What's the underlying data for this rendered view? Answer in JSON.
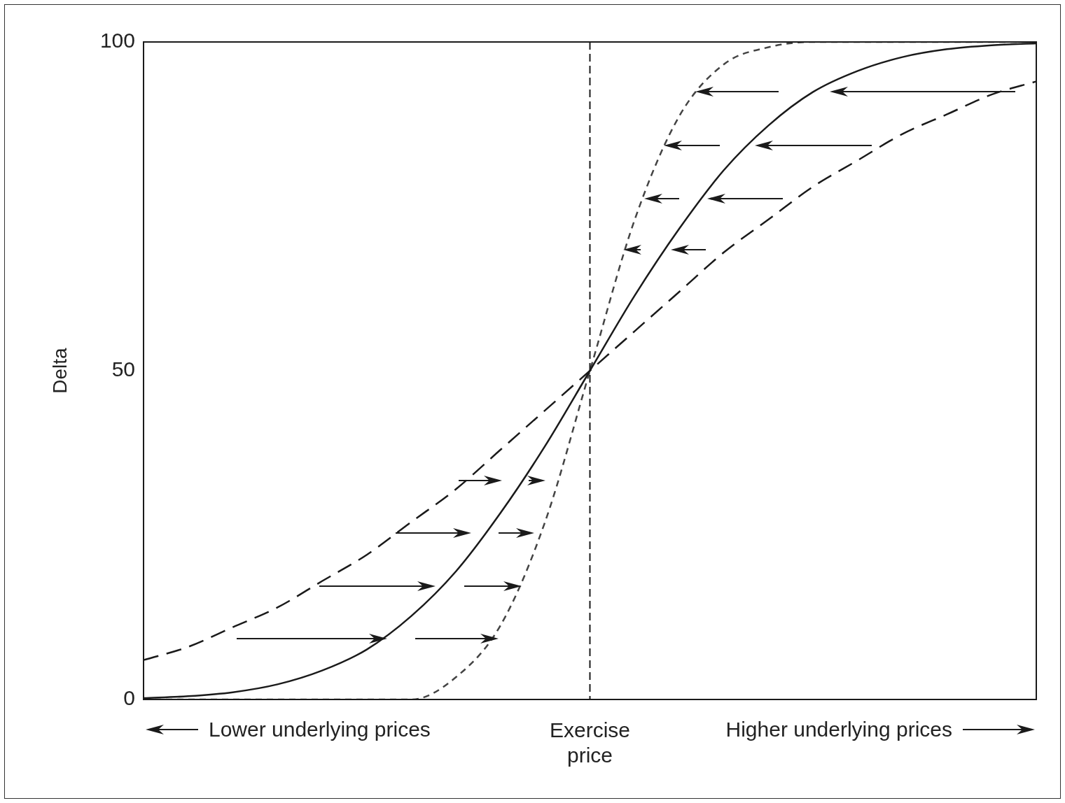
{
  "chart_data": {
    "type": "line",
    "ylabel": "Delta",
    "categories": [
      null,
      null,
      null,
      null,
      null,
      null,
      null,
      null,
      null,
      null,
      "Exercise price",
      null,
      null,
      null,
      null,
      null,
      null,
      null,
      null,
      null,
      null
    ],
    "series": [
      {
        "color": "#1a1a1a",
        "line_style": "solid",
        "values": [
          0.2,
          0.5,
          1.1,
          2.3,
          4.4,
          7.6,
          12.7,
          19.5,
          28.4,
          38.6,
          50,
          61.4,
          71.6,
          80.5,
          87.3,
          92.4,
          95.6,
          97.7,
          98.9,
          99.5,
          99.8
        ]
      },
      {
        "color": "#444444",
        "line_style": "dotted",
        "values": [
          0,
          0,
          0,
          0,
          0,
          0,
          0,
          3.4,
          11.3,
          27.1,
          50,
          72.9,
          88.7,
          96.6,
          99.2,
          100,
          100,
          100,
          100,
          100,
          100
        ]
      },
      {
        "color": "#1a1a1a",
        "line_style": "dashed",
        "values": [
          6,
          8,
          11,
          14,
          18,
          22,
          27,
          32,
          38,
          44,
          50,
          56,
          62,
          68,
          73,
          78,
          82,
          86,
          89,
          92,
          94
        ]
      }
    ],
    "ylim": [
      0,
      100
    ],
    "yticks": [
      0,
      50,
      100
    ],
    "ref_lines": [
      {
        "axis": "x",
        "value": "Exercise price",
        "line_style": "dashed",
        "color": "#1a1a1a"
      }
    ],
    "annotations": [
      "Lower underlying prices",
      "Higher underlying prices"
    ],
    "grid": false,
    "legend": false,
    "marker": "none"
  }
}
